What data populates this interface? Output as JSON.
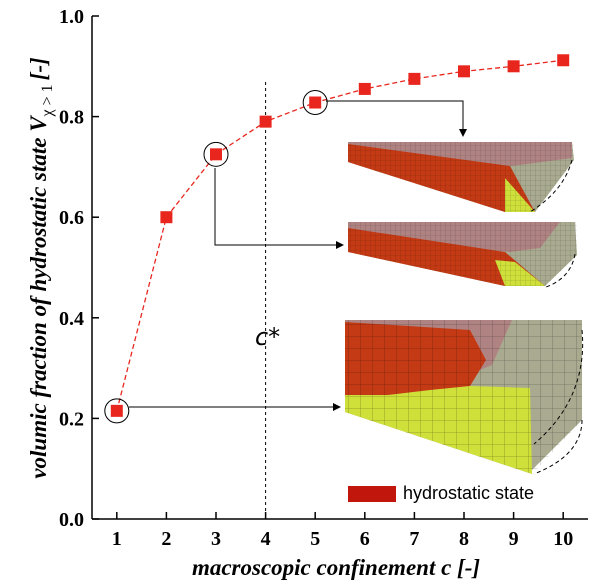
{
  "chart_data": {
    "type": "line",
    "x": [
      1,
      2,
      3,
      4,
      5,
      6,
      7,
      8,
      9,
      10
    ],
    "series": [
      {
        "values": [
          0.215,
          0.6,
          0.725,
          0.79,
          0.828,
          0.855,
          0.875,
          0.89,
          0.9,
          0.912
        ],
        "color": "#e8261e"
      }
    ],
    "xlabel": "macroscopic confinement c [-]",
    "ylabel": "volumic fraction of hydrostatic state V",
    "ylabel_subscript": "χ > 1",
    "ylabel_unit": "[-]",
    "xlim": [
      0.5,
      10.5
    ],
    "ylim": [
      0,
      1.0
    ],
    "xticks": [
      "1",
      "2",
      "3",
      "4",
      "5",
      "6",
      "7",
      "8",
      "9",
      "10"
    ],
    "yticks": [
      "0.0",
      "0.2",
      "0.4",
      "0.6",
      "0.8",
      "1.0"
    ],
    "grid": false,
    "vline": {
      "x": 4,
      "label": "c*"
    },
    "highlighted_points": [
      1,
      3,
      5
    ],
    "legend": {
      "label": "hydrostatic state",
      "color": "#c0160c",
      "placement": "bottom-right"
    }
  },
  "colors": {
    "hydrostatic": "#c43a14",
    "mesh_green": "#cfe03a",
    "mesh_gray": "#a9aa90",
    "mesh_pink": "#b08383"
  }
}
